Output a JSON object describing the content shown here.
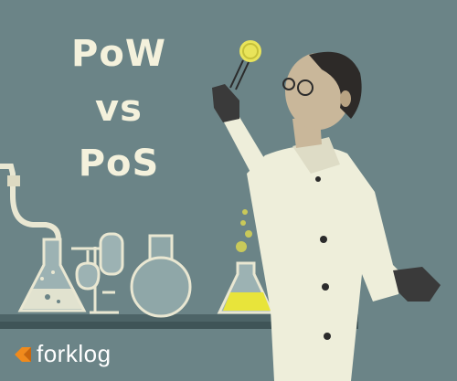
{
  "title": {
    "line1": "PoW",
    "line2": "vs",
    "line3": "PoS"
  },
  "brand": {
    "name": "forklog",
    "icon": "forklog-logo-icon",
    "accent": "#f08a1c"
  },
  "colors": {
    "background": "#6b8487",
    "title_text": "#f4f1dc",
    "coat": "#eeeeda",
    "liquid": "#e8e43a",
    "glass": "#8fa7a8"
  }
}
